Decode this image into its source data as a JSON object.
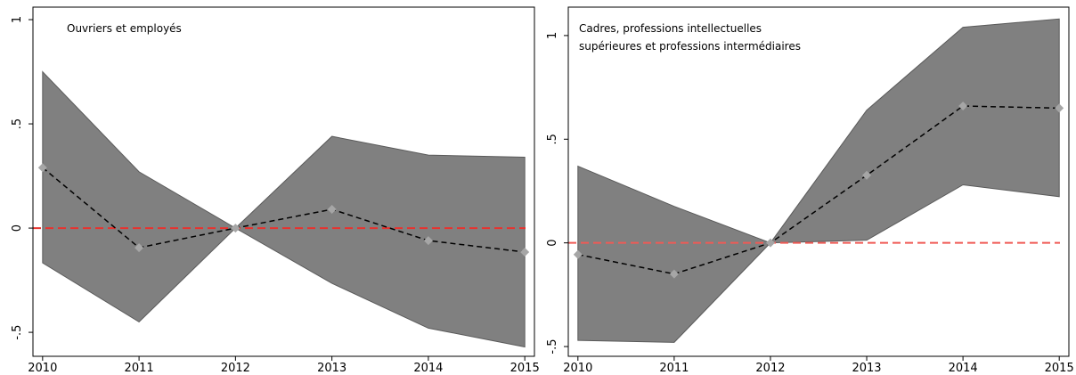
{
  "chart_data": [
    {
      "type": "line",
      "annotation": [
        "Ouvriers et employés"
      ],
      "x": [
        2010,
        2011,
        2012,
        2013,
        2014,
        2015
      ],
      "values": [
        0.29,
        -0.094,
        0,
        0.09,
        -0.06,
        -0.115
      ],
      "ci_upper": [
        0.75,
        0.27,
        0,
        0.44,
        0.35,
        0.34
      ],
      "ci_lower": [
        -0.167,
        -0.45,
        0,
        -0.265,
        -0.48,
        -0.57
      ],
      "xlim": [
        2009.9,
        2015.1
      ],
      "xticks": [
        2010,
        2011,
        2012,
        2013,
        2014,
        2015
      ],
      "ylim": [
        -0.615,
        1.06
      ],
      "yticks": [
        {
          "value": -0.5,
          "label": "-.5"
        },
        0,
        {
          "value": 0.5,
          "label": ".5"
        },
        1
      ],
      "hline": 0,
      "hline_color": "#e8322e",
      "band_color": "#808080",
      "line_color": "#000000",
      "marker_color": "#a6a6a6"
    },
    {
      "type": "line",
      "annotation": [
        "Cadres, professions intellectuelles",
        "supérieures et professions intermédiaires"
      ],
      "x": [
        2010,
        2011,
        2012,
        2013,
        2014,
        2015
      ],
      "values": [
        -0.056,
        -0.15,
        0,
        0.326,
        0.66,
        0.65
      ],
      "ci_upper": [
        0.37,
        0.176,
        0,
        0.64,
        1.04,
        1.08
      ],
      "ci_lower": [
        -0.47,
        -0.48,
        0,
        0.013,
        0.28,
        0.223
      ],
      "xlim": [
        2009.9,
        2015.1
      ],
      "xticks": [
        2010,
        2011,
        2012,
        2013,
        2014,
        2015
      ],
      "ylim": [
        -0.547,
        1.137
      ],
      "yticks": [
        {
          "value": -0.5,
          "label": "-.5"
        },
        0,
        {
          "value": 0.5,
          "label": ".5"
        },
        1
      ],
      "hline": 0,
      "hline_color": "#f05a55",
      "band_color": "#808080",
      "line_color": "#000000",
      "marker_color": "#a6a6a6"
    }
  ]
}
